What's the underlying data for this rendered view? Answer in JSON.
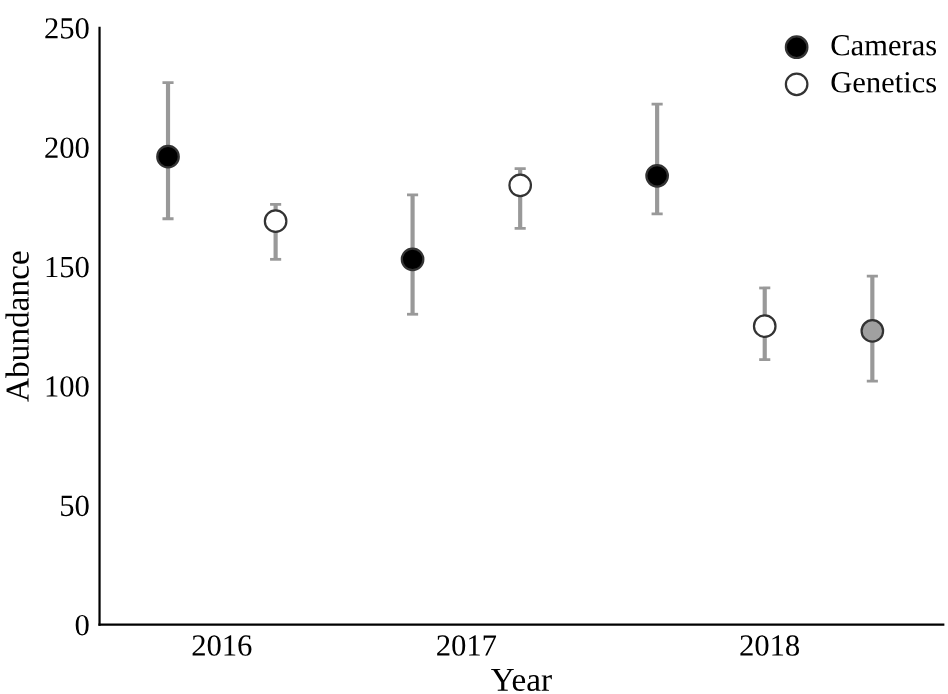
{
  "chart_data": {
    "type": "scatter",
    "xlabel": "Year",
    "ylabel": "Abundance",
    "xlim": [
      2015.5,
      2018.95
    ],
    "xticks": [
      2016,
      2017,
      {
        "value": 2018.24,
        "label": "2018"
      }
    ],
    "ylim": [
      0,
      250
    ],
    "yticks": [
      0,
      50,
      100,
      150,
      200,
      250
    ],
    "grid": false,
    "legend": "top right",
    "marker": "circle",
    "series": [
      {
        "name": "Cameras",
        "color": "#000000",
        "x": [
          2015.78,
          2016.78,
          2017.78
        ],
        "values": [
          196,
          153,
          188
        ],
        "errors": [
          [
            170,
            227
          ],
          [
            130,
            180
          ],
          [
            172,
            218
          ]
        ]
      },
      {
        "name": "Genetics",
        "color": "#ffffff",
        "x": [
          2016.22,
          2017.22,
          2018.22
        ],
        "values": [
          169,
          184,
          125
        ],
        "errors": [
          [
            153,
            176
          ],
          [
            166,
            191
          ],
          [
            111,
            141
          ]
        ]
      },
      {
        "color": "#a0a0a0",
        "x": [
          2018.66
        ],
        "values": [
          123
        ],
        "errors": [
          [
            102,
            146
          ]
        ]
      }
    ]
  }
}
